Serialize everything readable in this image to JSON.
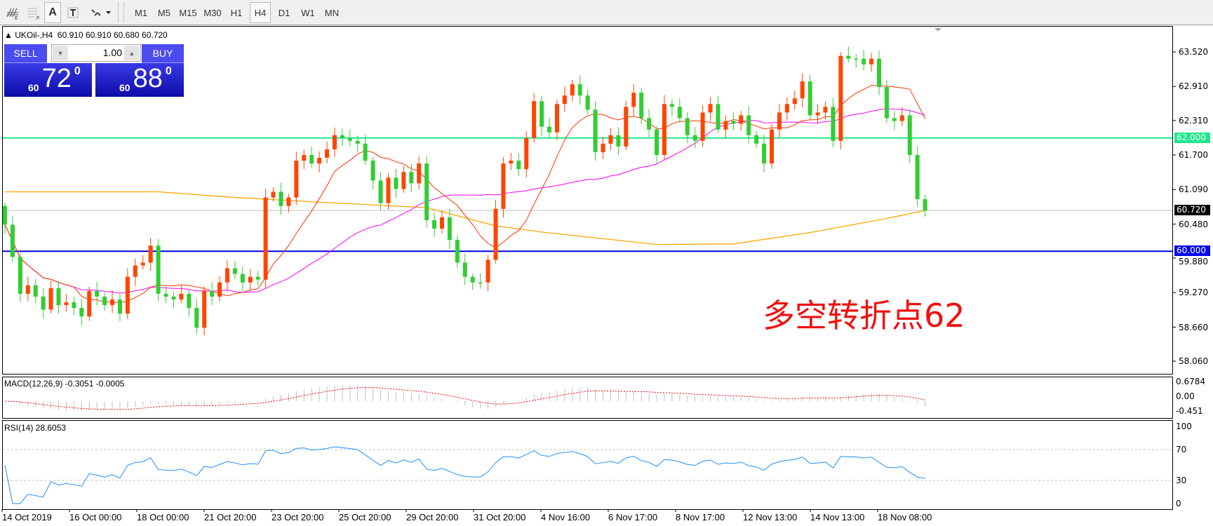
{
  "toolbar": {
    "tools": [
      "elliott-tool-icon",
      "fibo-tool-icon",
      "text-label-icon",
      "text-box-icon",
      "arrows-menu-icon"
    ],
    "text_tool": "A",
    "timeframes": [
      "M1",
      "M5",
      "M15",
      "M30",
      "H1",
      "H4",
      "D1",
      "W1",
      "MN"
    ],
    "active_timeframe": "H4"
  },
  "header": {
    "symbol": "UKOil-,H4",
    "ohlc": "60.910 60.910 60.680 60.720"
  },
  "trade_panel": {
    "sell_label": "SELL",
    "buy_label": "BUY",
    "lot": "1.00",
    "sell_prefix": "60",
    "sell_big": "72",
    "sell_pip": "0",
    "buy_prefix": "60",
    "buy_big": "88",
    "buy_pip": "0"
  },
  "annotation": "多空转折点62",
  "price_axis": {
    "ticks": [
      "63.520",
      "62.910",
      "62.310",
      "61.700",
      "61.090",
      "60.480",
      "59.880",
      "59.270",
      "58.660",
      "58.060"
    ],
    "levels": [
      {
        "label": "62.000",
        "color": "#1ee88a"
      },
      {
        "label": "60.720",
        "color": "#000000"
      },
      {
        "label": "60.000",
        "color": "#0000ee"
      }
    ]
  },
  "macd": {
    "label": "MACD(12,26,9) -0.3051 -0.0005",
    "ticks": [
      "0.6784",
      "0.00",
      "-0.451"
    ]
  },
  "rsi": {
    "label": "RSI(14) 28.6053",
    "ticks": [
      "100",
      "70",
      "30",
      "0"
    ]
  },
  "dates": [
    "14 Oct 2019",
    "16 Oct 00:00",
    "18 Oct 00:00",
    "21 Oct 20:00",
    "23 Oct 20:00",
    "25 Oct 20:00",
    "29 Oct 20:00",
    "31 Oct 20:00",
    "4 Nov 16:00",
    "6 Nov 17:00",
    "8 Nov 17:00",
    "12 Nov 13:00",
    "14 Nov 13:00",
    "18 Nov 08:00"
  ],
  "chart_data": {
    "type": "candlestick",
    "symbol": "UKOil-",
    "timeframe": "H4",
    "ylim": [
      58.06,
      63.52
    ],
    "colors": {
      "bull": "#ff4500",
      "bear": "#32cd32",
      "ma_fast": "#ff3300",
      "ma_mid": "#ff00ff",
      "ma_slow": "#ffa500",
      "macd_hist": "#c0c0c0",
      "macd_signal": "#ff0000",
      "rsi": "#1e90ff"
    },
    "first_open": 60.8,
    "closes": [
      60.47,
      59.9,
      59.25,
      59.4,
      59.2,
      58.97,
      59.35,
      59.05,
      59.1,
      59.0,
      58.85,
      59.3,
      59.2,
      59.05,
      59.15,
      58.9,
      59.55,
      59.75,
      59.8,
      60.1,
      59.25,
      59.2,
      59.15,
      59.25,
      59.0,
      58.65,
      59.3,
      59.2,
      59.45,
      59.7,
      59.6,
      59.45,
      59.55,
      59.5,
      60.95,
      61.05,
      60.8,
      60.95,
      61.6,
      61.7,
      61.55,
      61.65,
      61.8,
      62.05,
      62.0,
      61.95,
      61.9,
      61.6,
      61.25,
      60.85,
      61.3,
      61.1,
      61.4,
      61.2,
      61.55,
      60.55,
      60.4,
      60.6,
      60.2,
      59.8,
      59.55,
      59.45,
      59.45,
      59.85,
      60.75,
      61.55,
      61.6,
      61.45,
      62.0,
      62.65,
      62.2,
      62.1,
      62.6,
      62.75,
      62.95,
      62.75,
      62.5,
      61.75,
      61.9,
      62.05,
      61.85,
      62.55,
      62.8,
      62.35,
      62.15,
      61.7,
      62.6,
      62.55,
      62.35,
      62.05,
      61.95,
      62.45,
      62.6,
      62.15,
      62.3,
      62.25,
      62.4,
      62.05,
      61.9,
      61.55,
      62.15,
      62.45,
      62.6,
      62.7,
      63.0,
      62.4,
      62.45,
      62.55,
      61.95,
      63.45,
      63.4,
      63.4,
      63.3,
      63.4,
      62.9,
      62.35,
      62.3,
      62.4,
      61.7,
      60.92,
      60.72
    ],
    "slow_ma": [
      [
        0,
        61.05
      ],
      [
        20,
        61.05
      ],
      [
        30,
        60.95
      ],
      [
        42,
        60.86
      ],
      [
        55,
        60.77
      ],
      [
        64,
        60.45
      ],
      [
        70,
        60.34
      ],
      [
        85,
        60.12
      ],
      [
        95,
        60.13
      ],
      [
        105,
        60.33
      ],
      [
        115,
        60.58
      ],
      [
        120,
        60.72
      ]
    ],
    "hlines": [
      62.0,
      60.72,
      60.0
    ],
    "macd_range": [
      -0.451,
      0.6784
    ],
    "rsi_range": [
      0,
      100
    ],
    "rsi_levels": [
      70,
      30
    ]
  }
}
